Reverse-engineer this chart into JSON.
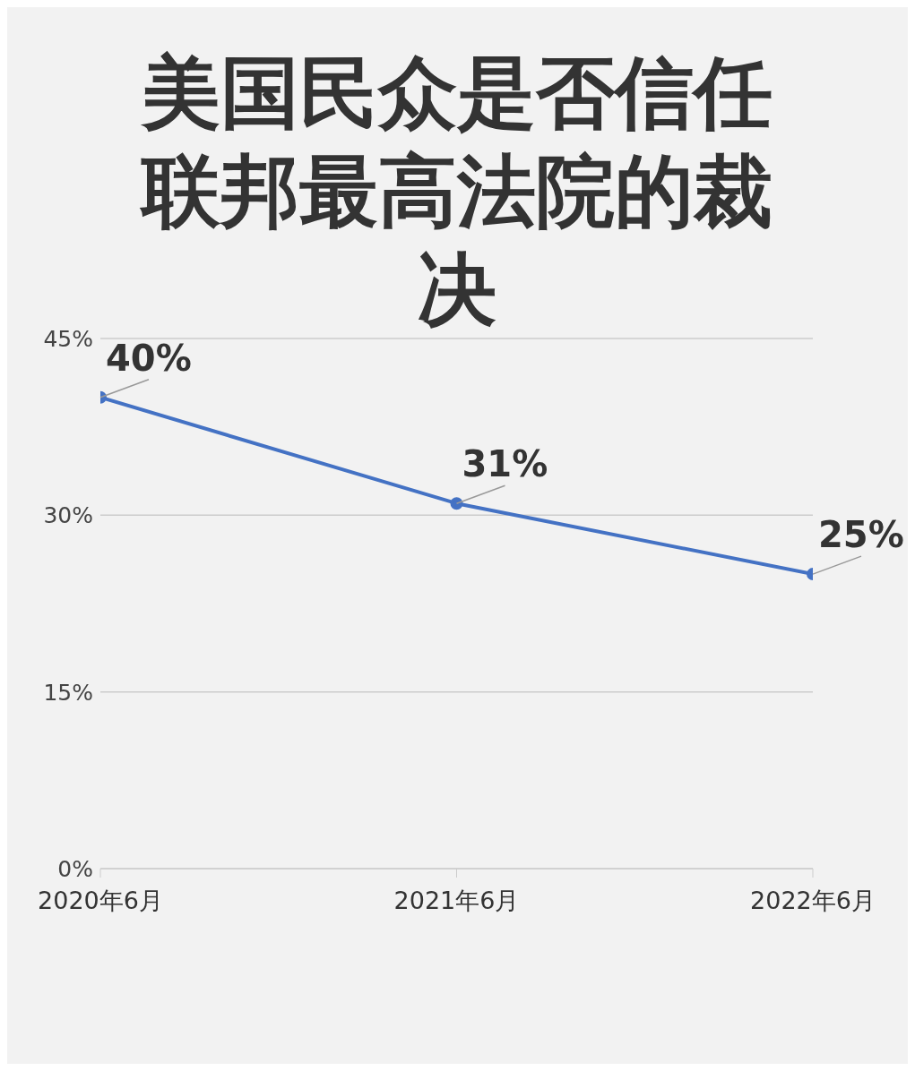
{
  "chart_data": {
    "type": "line",
    "title": "美国民众是否信任联邦最高法院的裁决",
    "categories": [
      "2020年6月",
      "2021年6月",
      "2022年6月"
    ],
    "series": [
      {
        "color": "#4472c4",
        "values": [
          40,
          31,
          25
        ],
        "value_labels": [
          "40%",
          "31%",
          "25%"
        ]
      }
    ],
    "ylim": [
      0,
      45
    ],
    "yticks": [
      {
        "value": 0,
        "label": "0%"
      },
      {
        "value": 15,
        "label": "15%"
      },
      {
        "value": 30,
        "label": "30%"
      },
      {
        "value": 45,
        "label": "45%"
      }
    ],
    "grid": "y",
    "marker": "circle",
    "legend": false
  }
}
